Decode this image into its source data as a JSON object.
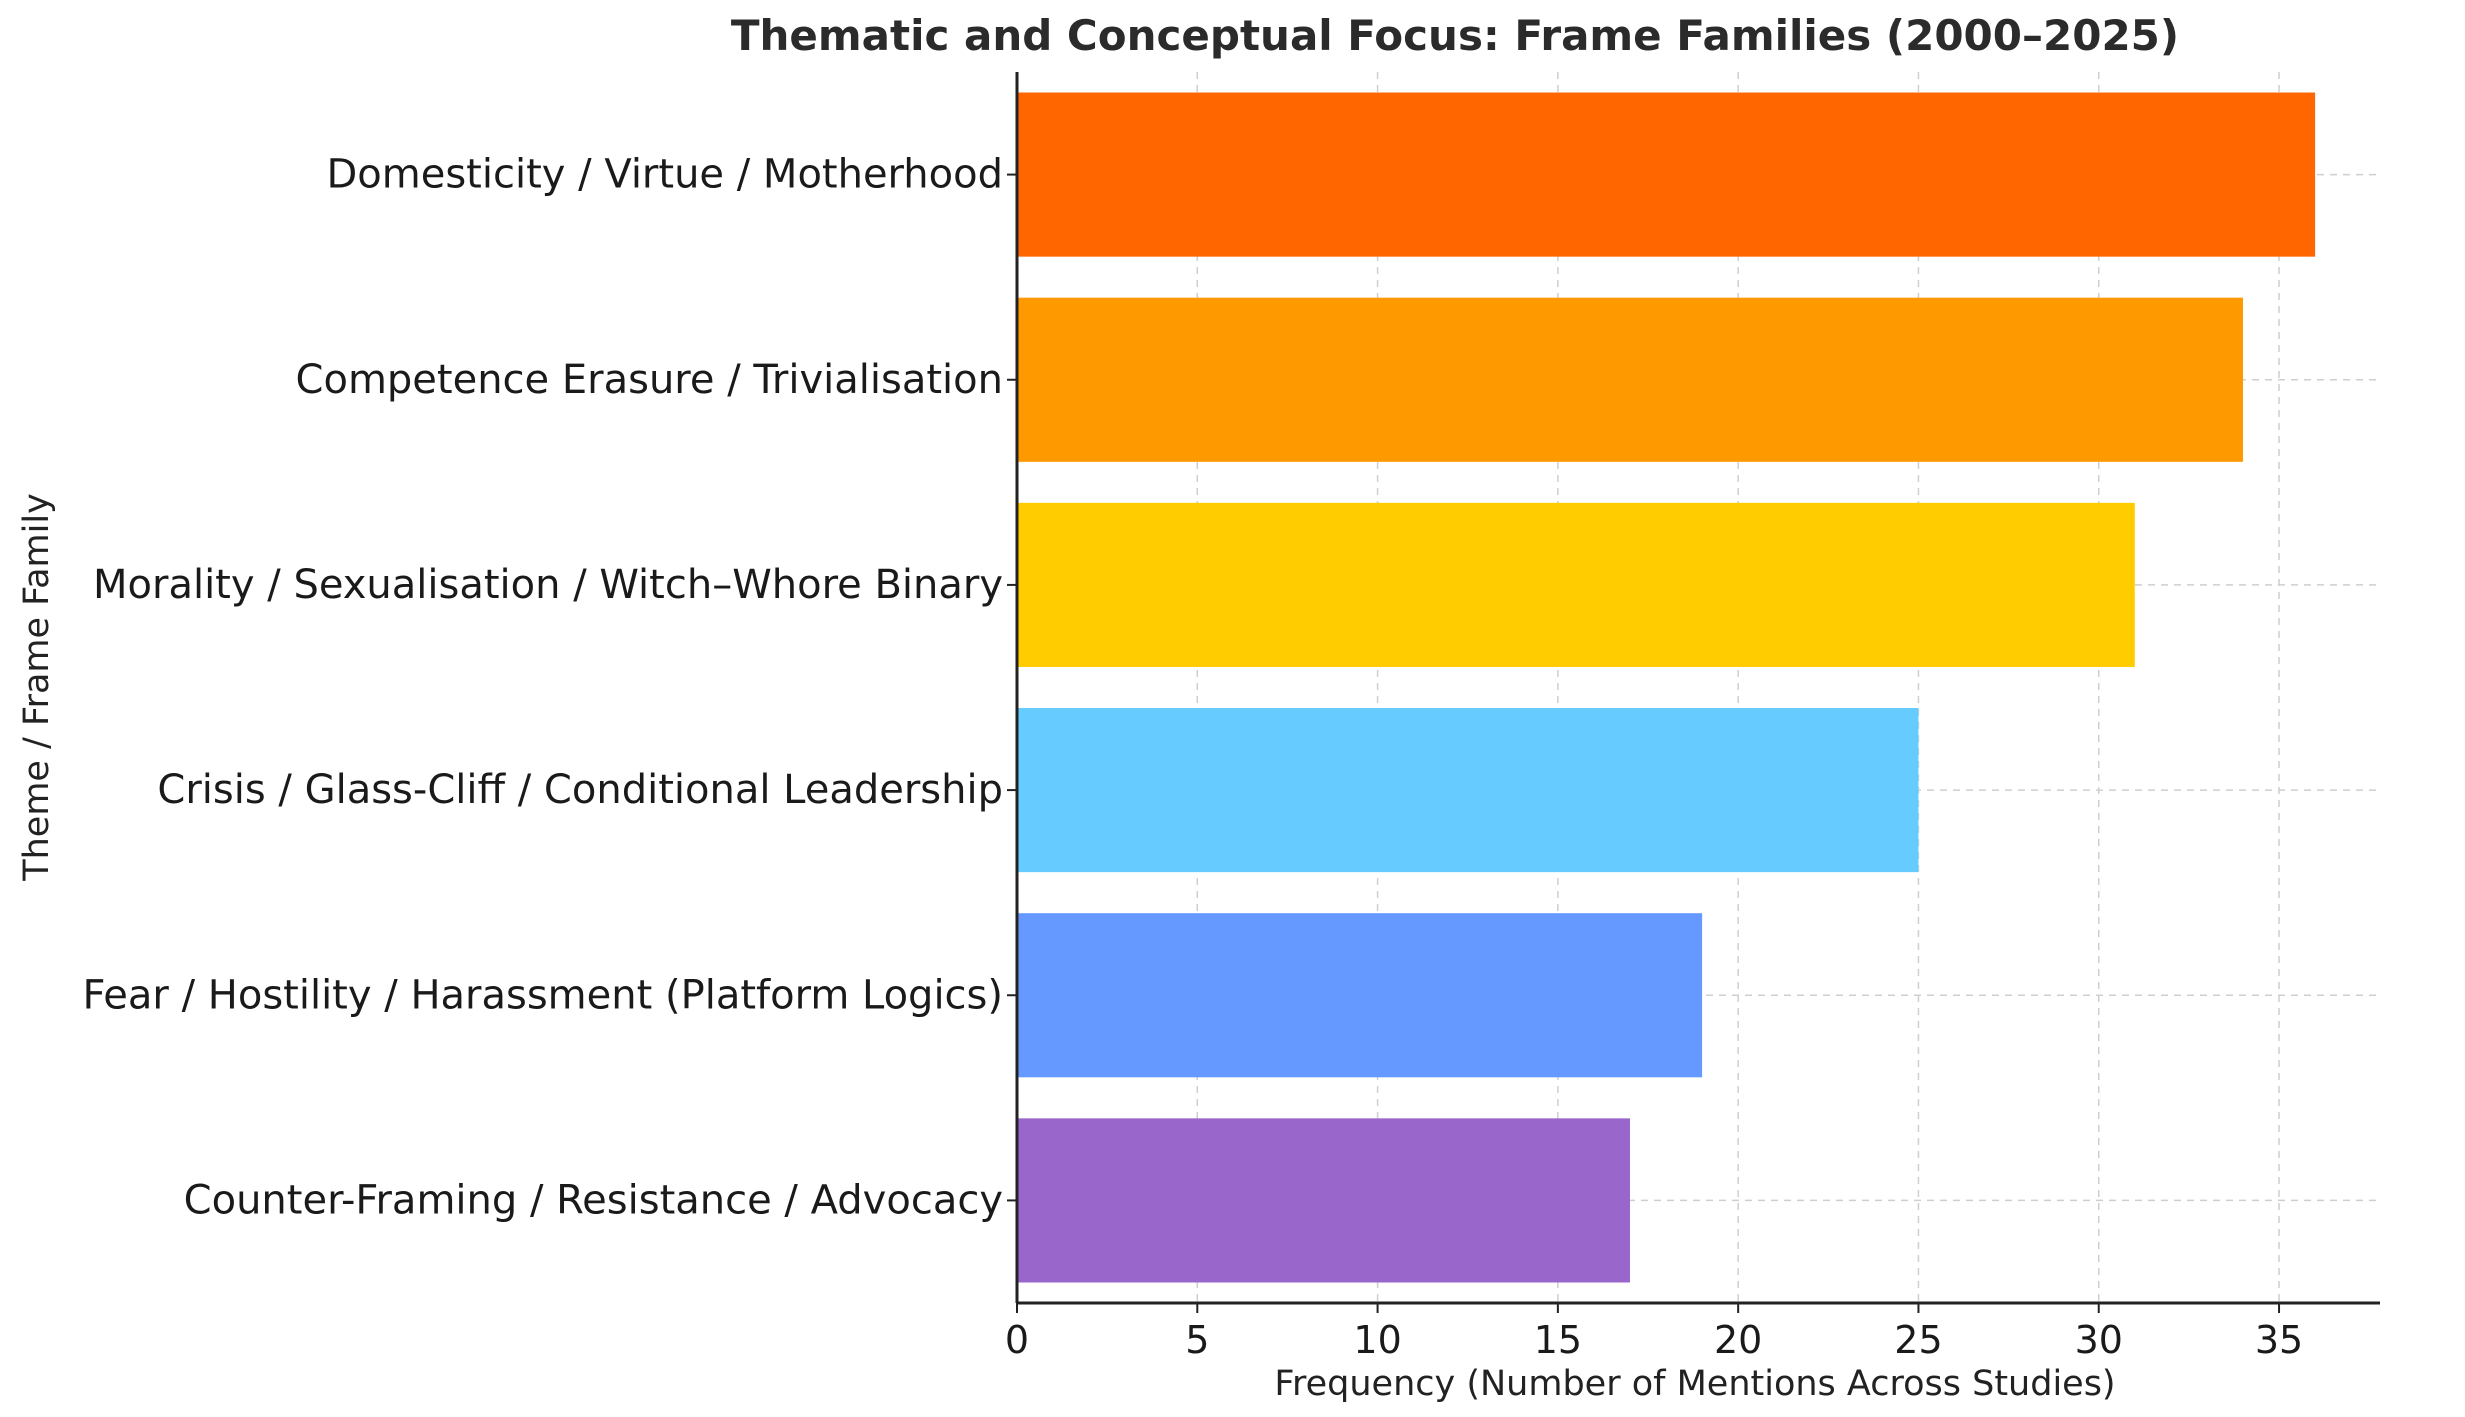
{
  "chart_data": {
    "type": "bar",
    "orientation": "horizontal",
    "title": "Thematic and Conceptual Focus: Frame Families (2000–2025)",
    "xlabel": "Frequency (Number of Mentions Across Studies)",
    "ylabel": "Theme / Frame Family",
    "categories": [
      "Domesticity / Virtue / Motherhood",
      "Competence Erasure / Trivialisation",
      "Morality / Sexualisation / Witch–Whore Binary",
      "Crisis / Glass-Cliff / Conditional Leadership",
      "Fear / Hostility / Harassment (Platform Logics)",
      "Counter-Framing / Resistance / Advocacy"
    ],
    "values": [
      36,
      34,
      31,
      25,
      19,
      17
    ],
    "colors": [
      "#ff6600",
      "#ff9900",
      "#ffcc00",
      "#66ccff",
      "#6699ff",
      "#9966cc"
    ],
    "xlim": [
      0,
      37.8
    ],
    "xticks": [
      0,
      5,
      10,
      15,
      20,
      25,
      30,
      35
    ],
    "grid": true,
    "legend": "none"
  }
}
